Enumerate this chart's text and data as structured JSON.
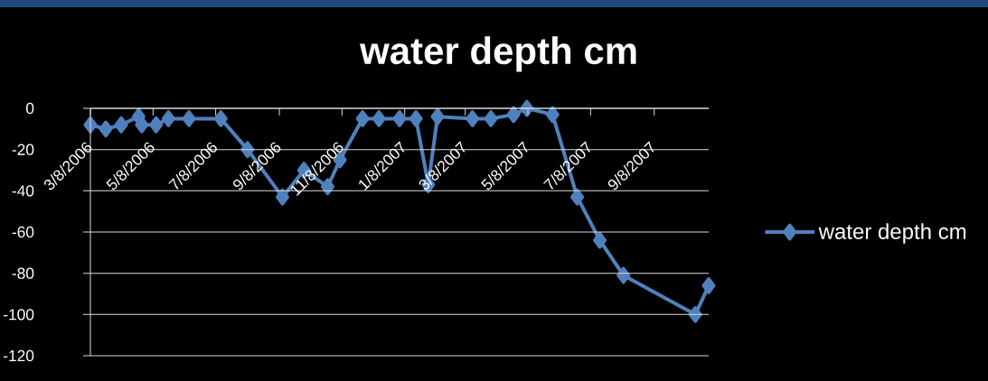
{
  "chart_data": {
    "type": "line",
    "title": "water depth cm",
    "x": [
      "2006-03-08",
      "2006-03-23",
      "2006-04-07",
      "2006-04-24",
      "2006-04-27",
      "2006-05-11",
      "2006-05-23",
      "2006-06-12",
      "2006-07-13",
      "2006-08-08",
      "2006-09-11",
      "2006-10-02",
      "2006-10-25",
      "2006-11-06",
      "2006-11-28",
      "2006-12-14",
      "2007-01-03",
      "2007-01-19",
      "2007-01-31",
      "2007-02-09",
      "2007-03-15",
      "2007-04-02",
      "2007-04-24",
      "2007-05-07",
      "2007-06-01",
      "2007-06-25",
      "2007-07-17",
      "2007-08-09",
      "2007-10-18",
      "2007-10-31"
    ],
    "series": [
      {
        "name": "water depth cm",
        "color": "#4f81bd",
        "values": [
          -8,
          -10,
          -8,
          -4,
          -8,
          -8,
          -5,
          -5,
          -5,
          -20,
          -43,
          -30,
          -38,
          -25,
          -5,
          -5,
          -5,
          -5,
          -37,
          -4,
          -5,
          -5,
          -3,
          0,
          -3,
          -43,
          -64,
          -81,
          -100,
          -86
        ]
      }
    ],
    "xlim": [
      "2006-03-08",
      "2007-10-31"
    ],
    "xticks": [
      {
        "value": "2006-03-08",
        "label": "3/8/2006"
      },
      {
        "value": "2006-05-08",
        "label": "5/8/2006"
      },
      {
        "value": "2006-07-08",
        "label": "7/8/2006"
      },
      {
        "value": "2006-09-08",
        "label": "9/8/2006"
      },
      {
        "value": "2006-11-08",
        "label": "11/8/2006"
      },
      {
        "value": "2007-01-08",
        "label": "1/8/2007"
      },
      {
        "value": "2007-03-08",
        "label": "3/8/2007"
      },
      {
        "value": "2007-05-08",
        "label": "5/8/2007"
      },
      {
        "value": "2007-07-08",
        "label": "7/8/2007"
      },
      {
        "value": "2007-09-08",
        "label": "9/8/2007"
      }
    ],
    "ylim": [
      -120,
      0
    ],
    "yticks": [
      -120,
      -100,
      -80,
      -60,
      -40,
      -20,
      0
    ],
    "grid": "y",
    "legend": "right",
    "marker": "diamond",
    "line_style": "solid"
  }
}
